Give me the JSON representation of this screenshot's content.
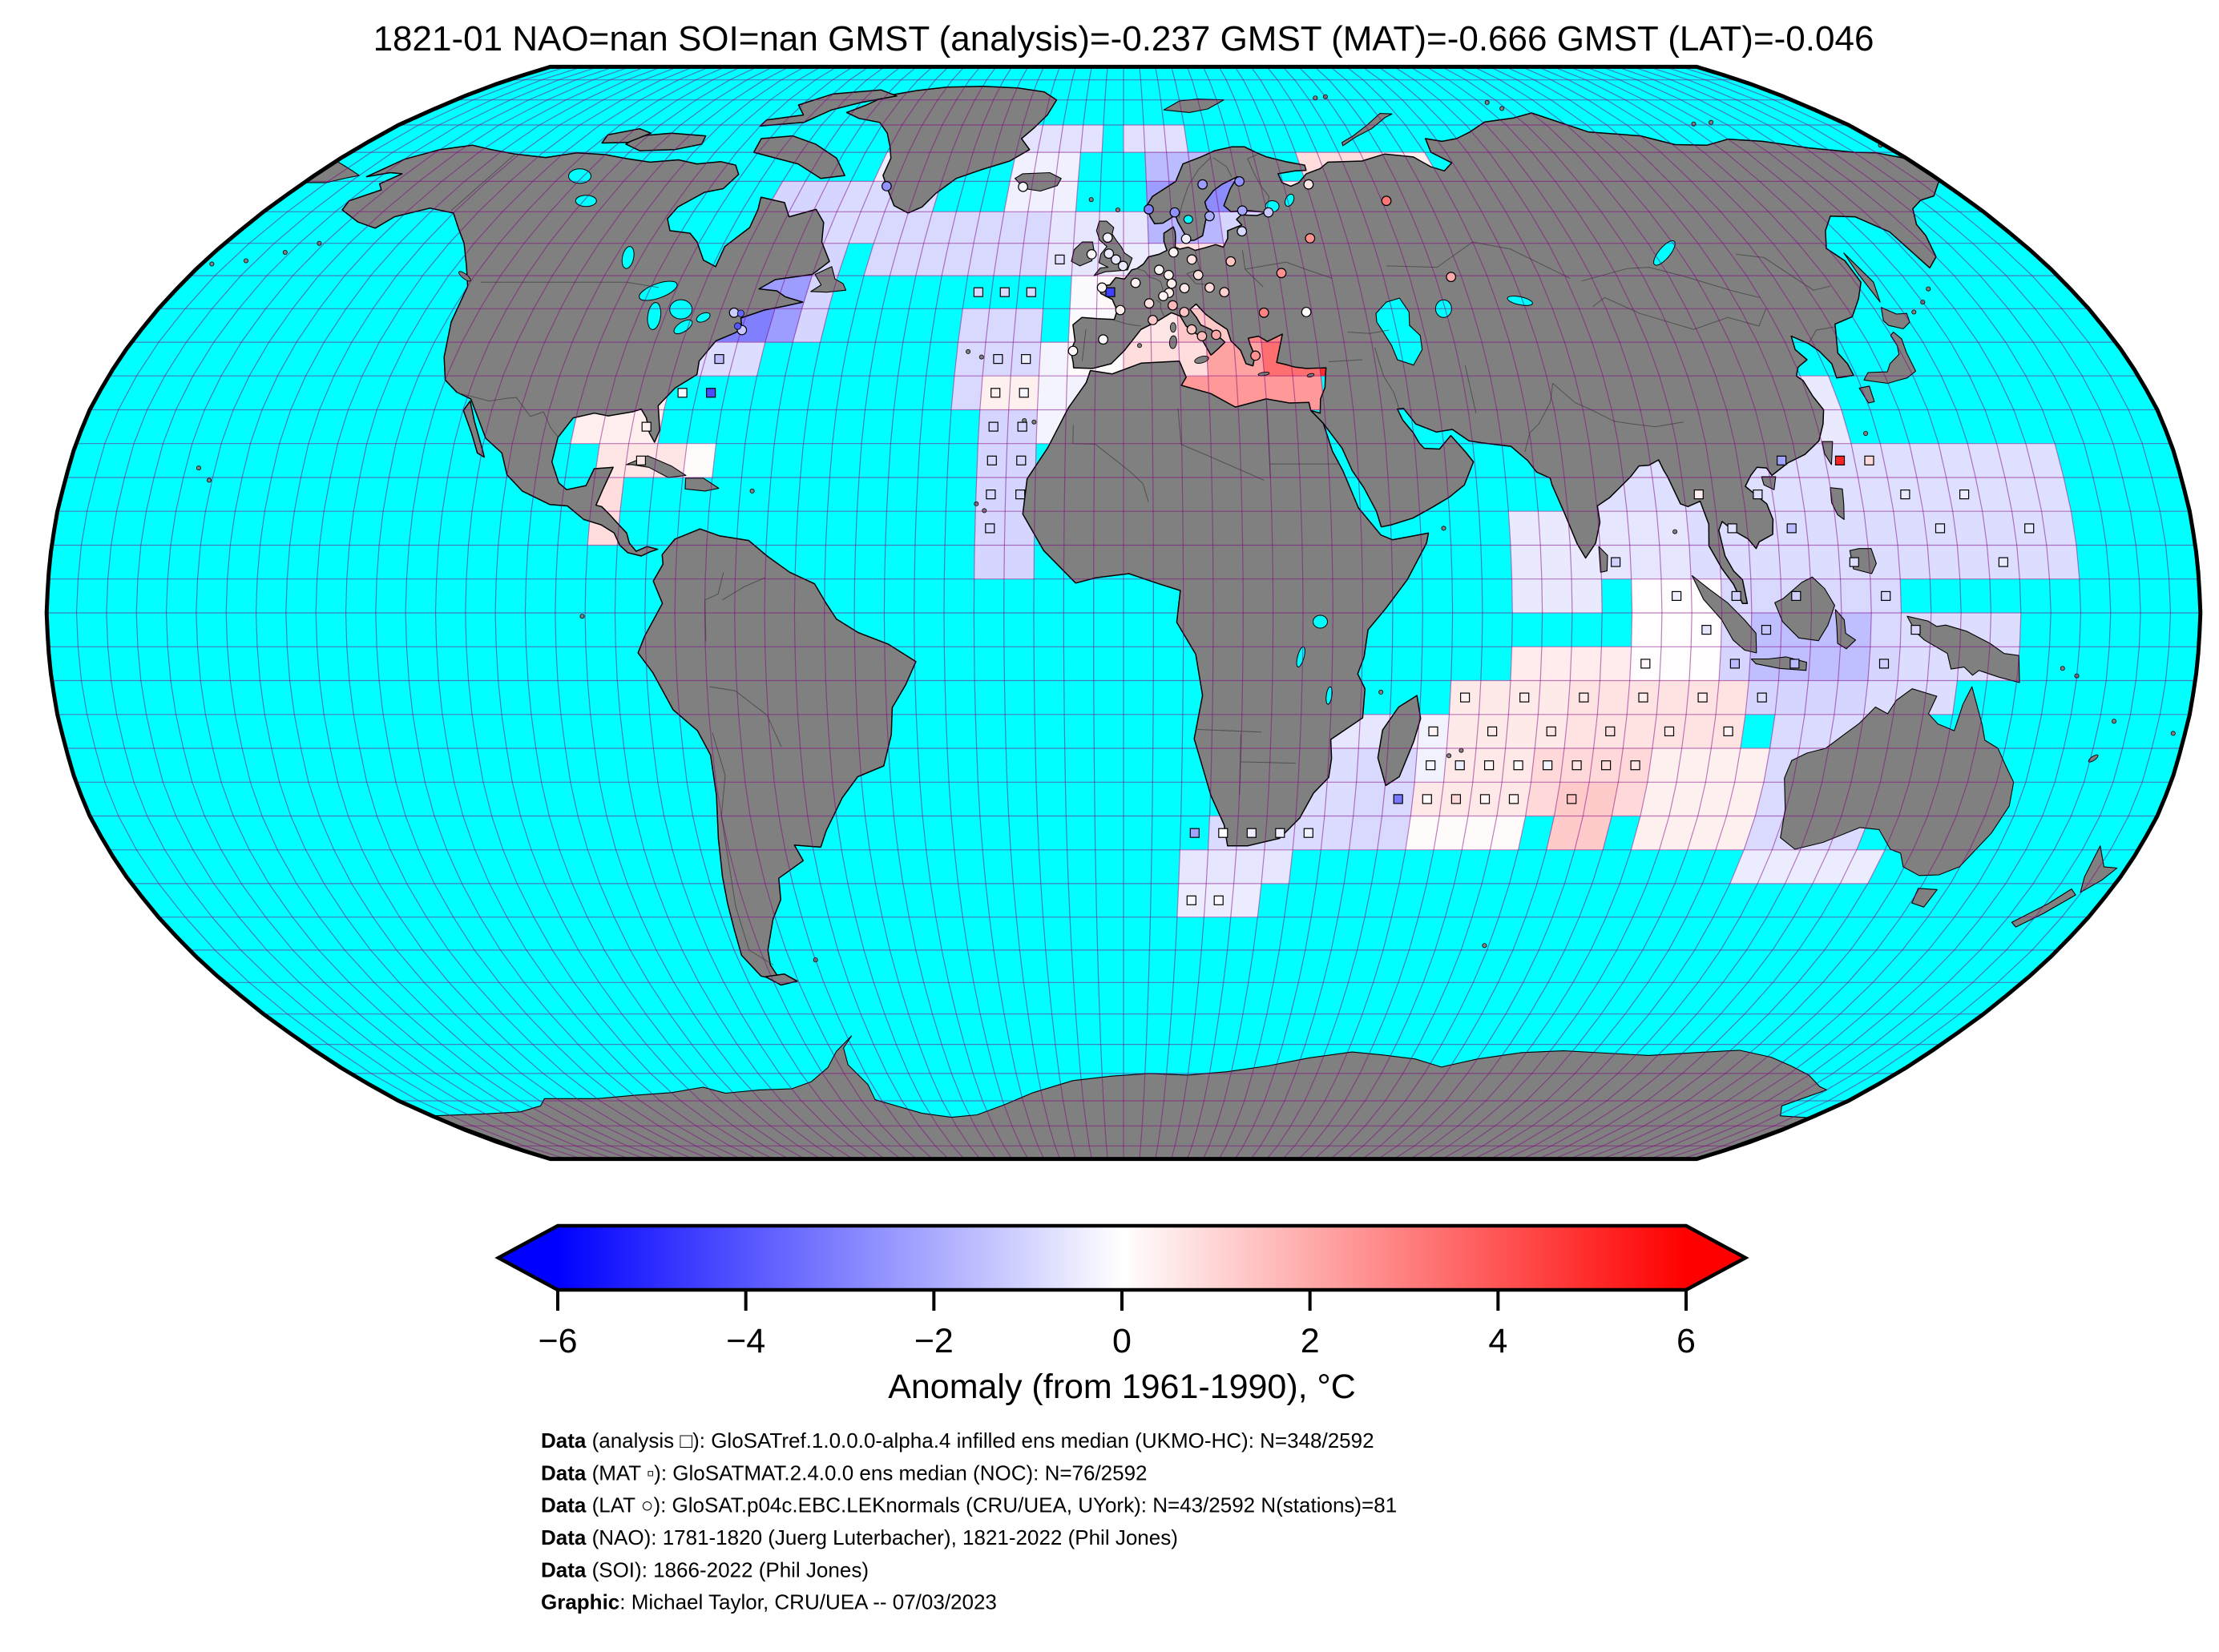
{
  "title": "1821-01 NAO=nan SOI=nan GMST (analysis)=-0.237 GMST (MAT)=-0.666 GMST (LAT)=-0.046",
  "chart_data": {
    "type": "heatmap",
    "projection": "robinson",
    "period": "1821-01",
    "stats": {
      "NAO": "nan",
      "SOI": "nan",
      "GMST_analysis": -0.237,
      "GMST_MAT": -0.666,
      "GMST_LAT": -0.046
    },
    "colormap": {
      "vmin": -6,
      "vmax": 6,
      "negative": "#0000ff",
      "zero": "#ffffff",
      "positive": "#ff0000"
    },
    "colorbar": {
      "tick_labels": [
        "−6",
        "−4",
        "−2",
        "0",
        "2",
        "4",
        "6"
      ],
      "tick_values": [
        -6,
        -4,
        -2,
        0,
        2,
        4,
        6
      ],
      "label": "Anomaly (from 1961-1990), °C"
    },
    "colors": {
      "ocean": "#00ffff",
      "land": "#808080",
      "coast": "#000000",
      "graticule_rgb": "128,0,128",
      "border": "rgba(60,60,60,0.7)"
    },
    "grid_deg": 5,
    "anomaly_blocks": [
      [
        -85,
        -75,
        40,
        50,
        -1.0
      ],
      [
        -75,
        -55,
        40,
        55,
        -1.0
      ],
      [
        -75,
        -60,
        40,
        50,
        -2.3
      ],
      [
        -75,
        -65,
        40,
        45,
        -3.0
      ],
      [
        -80,
        -65,
        35,
        40,
        -0.8
      ],
      [
        -85,
        -80,
        30,
        40,
        -0.2
      ],
      [
        -75,
        -55,
        55,
        65,
        -1.0
      ],
      [
        -60,
        -40,
        55,
        65,
        -0.85
      ],
      [
        -55,
        -50,
        65,
        70,
        -0.4
      ],
      [
        -40,
        -30,
        55,
        60,
        -0.3
      ],
      [
        -95,
        -80,
        25,
        35,
        0.4
      ],
      [
        -90,
        -75,
        20,
        25,
        0.6
      ],
      [
        -90,
        -85,
        10,
        20,
        0.8
      ],
      [
        -75,
        -70,
        20,
        25,
        0.1
      ],
      [
        -50,
        -10,
        50,
        60,
        -0.9
      ],
      [
        -15,
        5,
        50,
        60,
        -0.6
      ],
      [
        -30,
        -15,
        30,
        45,
        -0.9
      ],
      [
        -25,
        -15,
        5,
        30,
        -1.0
      ],
      [
        -25,
        -15,
        30,
        35,
        0.35
      ],
      [
        -15,
        -10,
        25,
        40,
        -0.25
      ],
      [
        -25,
        -10,
        60,
        70,
        -0.35
      ],
      [
        -25,
        -5,
        70,
        75,
        -0.65
      ],
      [
        0,
        15,
        70,
        75,
        -0.7
      ],
      [
        -10,
        10,
        35,
        50,
        -0.1
      ],
      [
        -10,
        0,
        25,
        35,
        -0.3
      ],
      [
        0,
        10,
        30,
        35,
        1.2
      ],
      [
        10,
        35,
        30,
        35,
        2.4
      ],
      [
        0,
        15,
        25,
        30,
        1.7
      ],
      [
        15,
        30,
        25,
        30,
        2.2
      ],
      [
        10,
        15,
        15,
        25,
        1.5
      ],
      [
        -5,
        10,
        50,
        55,
        -0.45
      ],
      [
        10,
        25,
        50,
        55,
        0.7
      ],
      [
        25,
        40,
        50,
        55,
        2.0
      ],
      [
        40,
        55,
        50,
        55,
        2.9
      ],
      [
        55,
        70,
        50,
        55,
        1.6
      ],
      [
        5,
        30,
        55,
        60,
        -1.7
      ],
      [
        20,
        30,
        55,
        60,
        -1.0
      ],
      [
        30,
        45,
        55,
        60,
        0.8
      ],
      [
        45,
        75,
        55,
        60,
        1.9
      ],
      [
        5,
        30,
        60,
        65,
        -2.3
      ],
      [
        10,
        25,
        60,
        65,
        -2.7
      ],
      [
        30,
        40,
        60,
        65,
        0.4
      ],
      [
        40,
        70,
        60,
        65,
        1.4
      ],
      [
        5,
        30,
        65,
        70,
        -1.6
      ],
      [
        40,
        60,
        65,
        70,
        0.8
      ],
      [
        60,
        70,
        65,
        70,
        0.4
      ],
      [
        -5,
        5,
        45,
        50,
        0.15
      ],
      [
        5,
        15,
        45,
        50,
        0.45
      ],
      [
        15,
        30,
        45,
        50,
        2.3
      ],
      [
        30,
        50,
        45,
        50,
        3.6
      ],
      [
        50,
        60,
        45,
        50,
        2.8
      ],
      [
        -10,
        0,
        40,
        45,
        -0.1
      ],
      [
        0,
        10,
        40,
        45,
        0.6
      ],
      [
        10,
        20,
        40,
        45,
        1.3
      ],
      [
        20,
        30,
        40,
        45,
        2.9
      ],
      [
        30,
        50,
        40,
        45,
        5.3
      ],
      [
        50,
        60,
        40,
        45,
        3.4
      ],
      [
        -10,
        0,
        35,
        40,
        0.1
      ],
      [
        0,
        15,
        35,
        40,
        0.8
      ],
      [
        15,
        25,
        35,
        40,
        2.2
      ],
      [
        25,
        35,
        35,
        40,
        3.4
      ],
      [
        35,
        50,
        35,
        40,
        4.9
      ],
      [
        50,
        60,
        35,
        40,
        3.0
      ],
      [
        80,
        160,
        15,
        25,
        -0.75
      ],
      [
        95,
        160,
        5,
        15,
        -0.8
      ],
      [
        80,
        95,
        5,
        15,
        -0.6
      ],
      [
        90,
        130,
        -5,
        5,
        -0.9
      ],
      [
        100,
        135,
        -15,
        -5,
        -1.0
      ],
      [
        85,
        100,
        -10,
        5,
        0.05
      ],
      [
        105,
        125,
        -10,
        0,
        -1.5
      ],
      [
        65,
        80,
        0,
        15,
        -0.5
      ],
      [
        75,
        80,
        15,
        20,
        -0.6
      ],
      [
        105,
        125,
        25,
        35,
        -0.5
      ],
      [
        130,
        150,
        -10,
        0,
        -0.8
      ],
      [
        65,
        85,
        -10,
        -5,
        0.45
      ],
      [
        55,
        105,
        -20,
        -10,
        0.5
      ],
      [
        75,
        105,
        -20,
        -10,
        0.65
      ],
      [
        45,
        80,
        -30,
        -20,
        0.55
      ],
      [
        70,
        90,
        -30,
        -20,
        0.9
      ],
      [
        75,
        85,
        -35,
        -25,
        1.25
      ],
      [
        40,
        55,
        -25,
        -15,
        -0.3
      ],
      [
        40,
        50,
        -35,
        -20,
        -0.9
      ],
      [
        90,
        115,
        -35,
        -20,
        0.35
      ],
      [
        50,
        70,
        -35,
        -30,
        0.1
      ],
      [
        110,
        130,
        -35,
        -15,
        -0.85
      ],
      [
        110,
        135,
        -40,
        -35,
        -0.45
      ],
      [
        125,
        140,
        -15,
        -10,
        -0.8
      ],
      [
        15,
        40,
        -35,
        -30,
        -0.85
      ],
      [
        10,
        30,
        -40,
        -35,
        -0.6
      ],
      [
        25,
        40,
        -30,
        -20,
        -0.8
      ],
      [
        10,
        25,
        -45,
        -40,
        -0.45
      ],
      [
        35,
        45,
        -20,
        -15,
        -0.6
      ]
    ],
    "markers": {
      "squares": [
        [
          -27.5,
          47.5,
          -0.9
        ],
        [
          -22.5,
          47.5,
          -0.9
        ],
        [
          -17.5,
          47.5,
          -0.9
        ],
        [
          -2.5,
          47.5,
          -4.5
        ],
        [
          -12.5,
          52.5,
          -0.7
        ],
        [
          -22.5,
          37.5,
          -0.9
        ],
        [
          -17.5,
          37.5,
          -0.4
        ],
        [
          -22.5,
          32.5,
          0.35
        ],
        [
          -17.5,
          32.5,
          -0.2
        ],
        [
          -22.5,
          27.5,
          -1
        ],
        [
          -17.5,
          27.5,
          -1
        ],
        [
          -22.5,
          22.5,
          -1
        ],
        [
          -17.5,
          22.5,
          -1
        ],
        [
          -22.5,
          17.5,
          -1
        ],
        [
          -17.5,
          17.5,
          -1
        ],
        [
          -22.5,
          12.5,
          -1
        ],
        [
          -77.5,
          32.5,
          -0.2
        ],
        [
          -72.5,
          32.5,
          -4.2
        ],
        [
          -82.5,
          27.5,
          0.35
        ],
        [
          -72.5,
          37.5,
          -1.6
        ],
        [
          -82.5,
          22.5,
          0.6
        ],
        [
          112.5,
          22.5,
          -2.2
        ],
        [
          122.5,
          22.5,
          5.2
        ],
        [
          127.5,
          22.5,
          0.9
        ],
        [
          97.5,
          17.5,
          0.4
        ],
        [
          107.5,
          17.5,
          -0.8
        ],
        [
          132.5,
          17.5,
          -0.5
        ],
        [
          142.5,
          17.5,
          -0.4
        ],
        [
          102.5,
          12.5,
          -0.7
        ],
        [
          112.5,
          12.5,
          -1.6
        ],
        [
          137.5,
          12.5,
          -0.6
        ],
        [
          152.5,
          12.5,
          -0.5
        ],
        [
          82.5,
          7.5,
          -1.1
        ],
        [
          122.5,
          7.5,
          -0.8
        ],
        [
          147.5,
          7.5,
          -0.5
        ],
        [
          92.5,
          2.5,
          -0.4
        ],
        [
          102.5,
          2.5,
          -1.1
        ],
        [
          112.5,
          2.5,
          -1.1
        ],
        [
          127.5,
          2.5,
          -0.9
        ],
        [
          97.5,
          -2.5,
          -0.6
        ],
        [
          107.5,
          -2.5,
          -1.4
        ],
        [
          132.5,
          -2.5,
          -0.9
        ],
        [
          87.5,
          -7.5,
          0.2
        ],
        [
          102.5,
          -7.5,
          -1.6
        ],
        [
          112.5,
          -7.5,
          -1.6
        ],
        [
          127.5,
          -7.5,
          -1.1
        ],
        [
          57.5,
          -12.5,
          0.3
        ],
        [
          67.5,
          -12.5,
          0.4
        ],
        [
          77.5,
          -12.5,
          0.5
        ],
        [
          87.5,
          -12.5,
          0.4
        ],
        [
          97.5,
          -12.5,
          0.4
        ],
        [
          107.5,
          -12.5,
          -0.8
        ],
        [
          52.5,
          -17.5,
          0.3
        ],
        [
          62.5,
          -17.5,
          0.5
        ],
        [
          72.5,
          -17.5,
          0.6
        ],
        [
          82.5,
          -17.5,
          0.7
        ],
        [
          92.5,
          -17.5,
          0.5
        ],
        [
          102.5,
          -17.5,
          0.3
        ],
        [
          52.5,
          -22.5,
          -0.2
        ],
        [
          57.5,
          -22.5,
          -0.4
        ],
        [
          62.5,
          -22.5,
          0.2
        ],
        [
          67.5,
          -22.5,
          0.1
        ],
        [
          72.5,
          -22.5,
          -0.3
        ],
        [
          77.5,
          -22.5,
          0.6
        ],
        [
          82.5,
          -22.5,
          0.8
        ],
        [
          87.5,
          -22.5,
          0.6
        ],
        [
          47.5,
          -27.5,
          -3.2
        ],
        [
          52.5,
          -27.5,
          0.1
        ],
        [
          57.5,
          -27.5,
          0.9
        ],
        [
          62.5,
          -27.5,
          0.2
        ],
        [
          67.5,
          -27.5,
          0.3
        ],
        [
          77.5,
          -27.5,
          1.4
        ],
        [
          12.5,
          -32.5,
          -2.2
        ],
        [
          17.5,
          -32.5,
          0
        ],
        [
          22.5,
          -32.5,
          -0.4
        ],
        [
          27.5,
          -32.5,
          -0.4
        ],
        [
          32.5,
          -32.5,
          -0.3
        ],
        [
          12.5,
          -42.5,
          -0.2
        ],
        [
          17.5,
          -42.5,
          -0.1
        ]
      ],
      "circles": [
        [
          5.3,
          60.4,
          -3
        ],
        [
          10.7,
          59.9,
          -2.6
        ],
        [
          17.9,
          59.3,
          -1.9
        ],
        [
          24.9,
          60.2,
          -2.1
        ],
        [
          25.5,
          65,
          -2.6
        ],
        [
          17.3,
          64.5,
          -2.3
        ],
        [
          30.3,
          59.9,
          -1.3
        ],
        [
          24.1,
          56.9,
          -0.9
        ],
        [
          -21.9,
          64.1,
          -0.2
        ],
        [
          -51.7,
          64.2,
          -2.6
        ],
        [
          -6.3,
          53.3,
          0.2
        ],
        [
          -3.2,
          55.9,
          -0.3
        ],
        [
          -2.9,
          53.4,
          -0.5
        ],
        [
          -1.5,
          52.5,
          -0.6
        ],
        [
          -0.1,
          51.5,
          -0.5
        ],
        [
          -4.1,
          48.2,
          0.2
        ],
        [
          2.3,
          48.9,
          0.3
        ],
        [
          4.8,
          45.8,
          0.7
        ],
        [
          5.4,
          43.3,
          1.3
        ],
        [
          -0.6,
          44.8,
          0.4
        ],
        [
          -3.7,
          40.4,
          -0.1
        ],
        [
          -9.1,
          38.7,
          0.1
        ],
        [
          6.9,
          50.9,
          0.2
        ],
        [
          8.7,
          50.1,
          0.3
        ],
        [
          9.2,
          48.8,
          0.4
        ],
        [
          11.6,
          48.1,
          0.5
        ],
        [
          13.4,
          52.5,
          0.7
        ],
        [
          9.9,
          53.6,
          0.3
        ],
        [
          12.6,
          55.7,
          -0.4
        ],
        [
          14.4,
          50.1,
          0.7
        ],
        [
          16.4,
          48.2,
          0.9
        ],
        [
          19.1,
          47.5,
          1.1
        ],
        [
          21,
          52.2,
          1.4
        ],
        [
          8.6,
          47.4,
          0.4
        ],
        [
          7.5,
          46.9,
          0.3
        ],
        [
          9.2,
          45.5,
          1.6
        ],
        [
          11.3,
          44.5,
          1.4
        ],
        [
          12.5,
          41.9,
          1.3
        ],
        [
          14.3,
          40.9,
          1.6
        ],
        [
          16.9,
          41.1,
          2.1
        ],
        [
          23.7,
          38,
          2.6
        ],
        [
          26.1,
          44.4,
          2.9
        ],
        [
          30.5,
          50.4,
          2.6
        ],
        [
          34,
          44.5,
          0.05
        ],
        [
          37.6,
          55.8,
          2.6
        ],
        [
          40.5,
          64.5,
          0.6
        ],
        [
          56,
          61.8,
          3.2
        ],
        [
          63,
          49.8,
          2
        ],
        [
          -72.4,
          44.4,
          -1.2
        ],
        [
          -69.9,
          41.8,
          -1.3
        ]
      ],
      "dots": [
        [
          -71.1,
          44.3,
          -3.6
        ],
        [
          -70.9,
          42.4,
          -4.0
        ]
      ]
    }
  },
  "annotations": {
    "lines": [
      {
        "b": "Data",
        "r": " (analysis □): GloSATref.1.0.0.0-alpha.4 infilled ens median (UKMO-HC): N=348/2592"
      },
      {
        "b": "Data",
        "r": " (MAT ▫): GloSATMAT.2.4.0.0 ens median (NOC): N=76/2592"
      },
      {
        "b": "Data",
        "r": " (LAT ○): GloSAT.p04c.EBC.LEKnormals (CRU/UEA, UYork): N=43/2592 N(stations)=81"
      },
      {
        "b": "Data",
        "r": " (NAO): 1781-1820 (Juerg Luterbacher), 1821-2022 (Phil Jones)"
      },
      {
        "b": "Data",
        "r": " (SOI): 1866-2022 (Phil Jones)"
      },
      {
        "b": "Graphic",
        "r": ": Michael Taylor, CRU/UEA -- 07/03/2023"
      }
    ]
  }
}
